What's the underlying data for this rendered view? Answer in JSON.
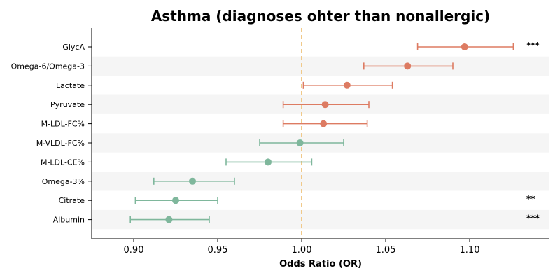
{
  "chart_data": {
    "type": "forest",
    "title": "Asthma (diagnoses ohter than nonallergic)",
    "xlabel": "Odds Ratio (OR)",
    "xlim": [
      0.875,
      1.1475
    ],
    "xticks": [
      0.9,
      0.95,
      1.0,
      1.05,
      1.1
    ],
    "xtick_labels": [
      "0.90",
      "0.95",
      "1.00",
      "1.05",
      "1.10"
    ],
    "reference_line": 1.0,
    "colors": {
      "positive": "#dd7b62",
      "negative": "#7fb79c",
      "reference": "#f0c98a",
      "band": "#f5f5f5"
    },
    "rows": [
      {
        "label": "GlycA",
        "or": 1.097,
        "lo": 1.069,
        "hi": 1.126,
        "sig": "***"
      },
      {
        "label": "Omega-6/Omega-3",
        "or": 1.063,
        "lo": 1.037,
        "hi": 1.09,
        "sig": ""
      },
      {
        "label": "Lactate",
        "or": 1.027,
        "lo": 1.001,
        "hi": 1.054,
        "sig": ""
      },
      {
        "label": "Pyruvate",
        "or": 1.014,
        "lo": 0.989,
        "hi": 1.04,
        "sig": ""
      },
      {
        "label": "M-LDL-FC%",
        "or": 1.013,
        "lo": 0.989,
        "hi": 1.039,
        "sig": ""
      },
      {
        "label": "M-VLDL-FC%",
        "or": 0.999,
        "lo": 0.975,
        "hi": 1.025,
        "sig": ""
      },
      {
        "label": "M-LDL-CE%",
        "or": 0.98,
        "lo": 0.955,
        "hi": 1.006,
        "sig": ""
      },
      {
        "label": "Omega-3%",
        "or": 0.935,
        "lo": 0.912,
        "hi": 0.96,
        "sig": ""
      },
      {
        "label": "Citrate",
        "or": 0.925,
        "lo": 0.901,
        "hi": 0.95,
        "sig": "**"
      },
      {
        "label": "Albumin",
        "or": 0.921,
        "lo": 0.898,
        "hi": 0.945,
        "sig": "***"
      }
    ]
  }
}
